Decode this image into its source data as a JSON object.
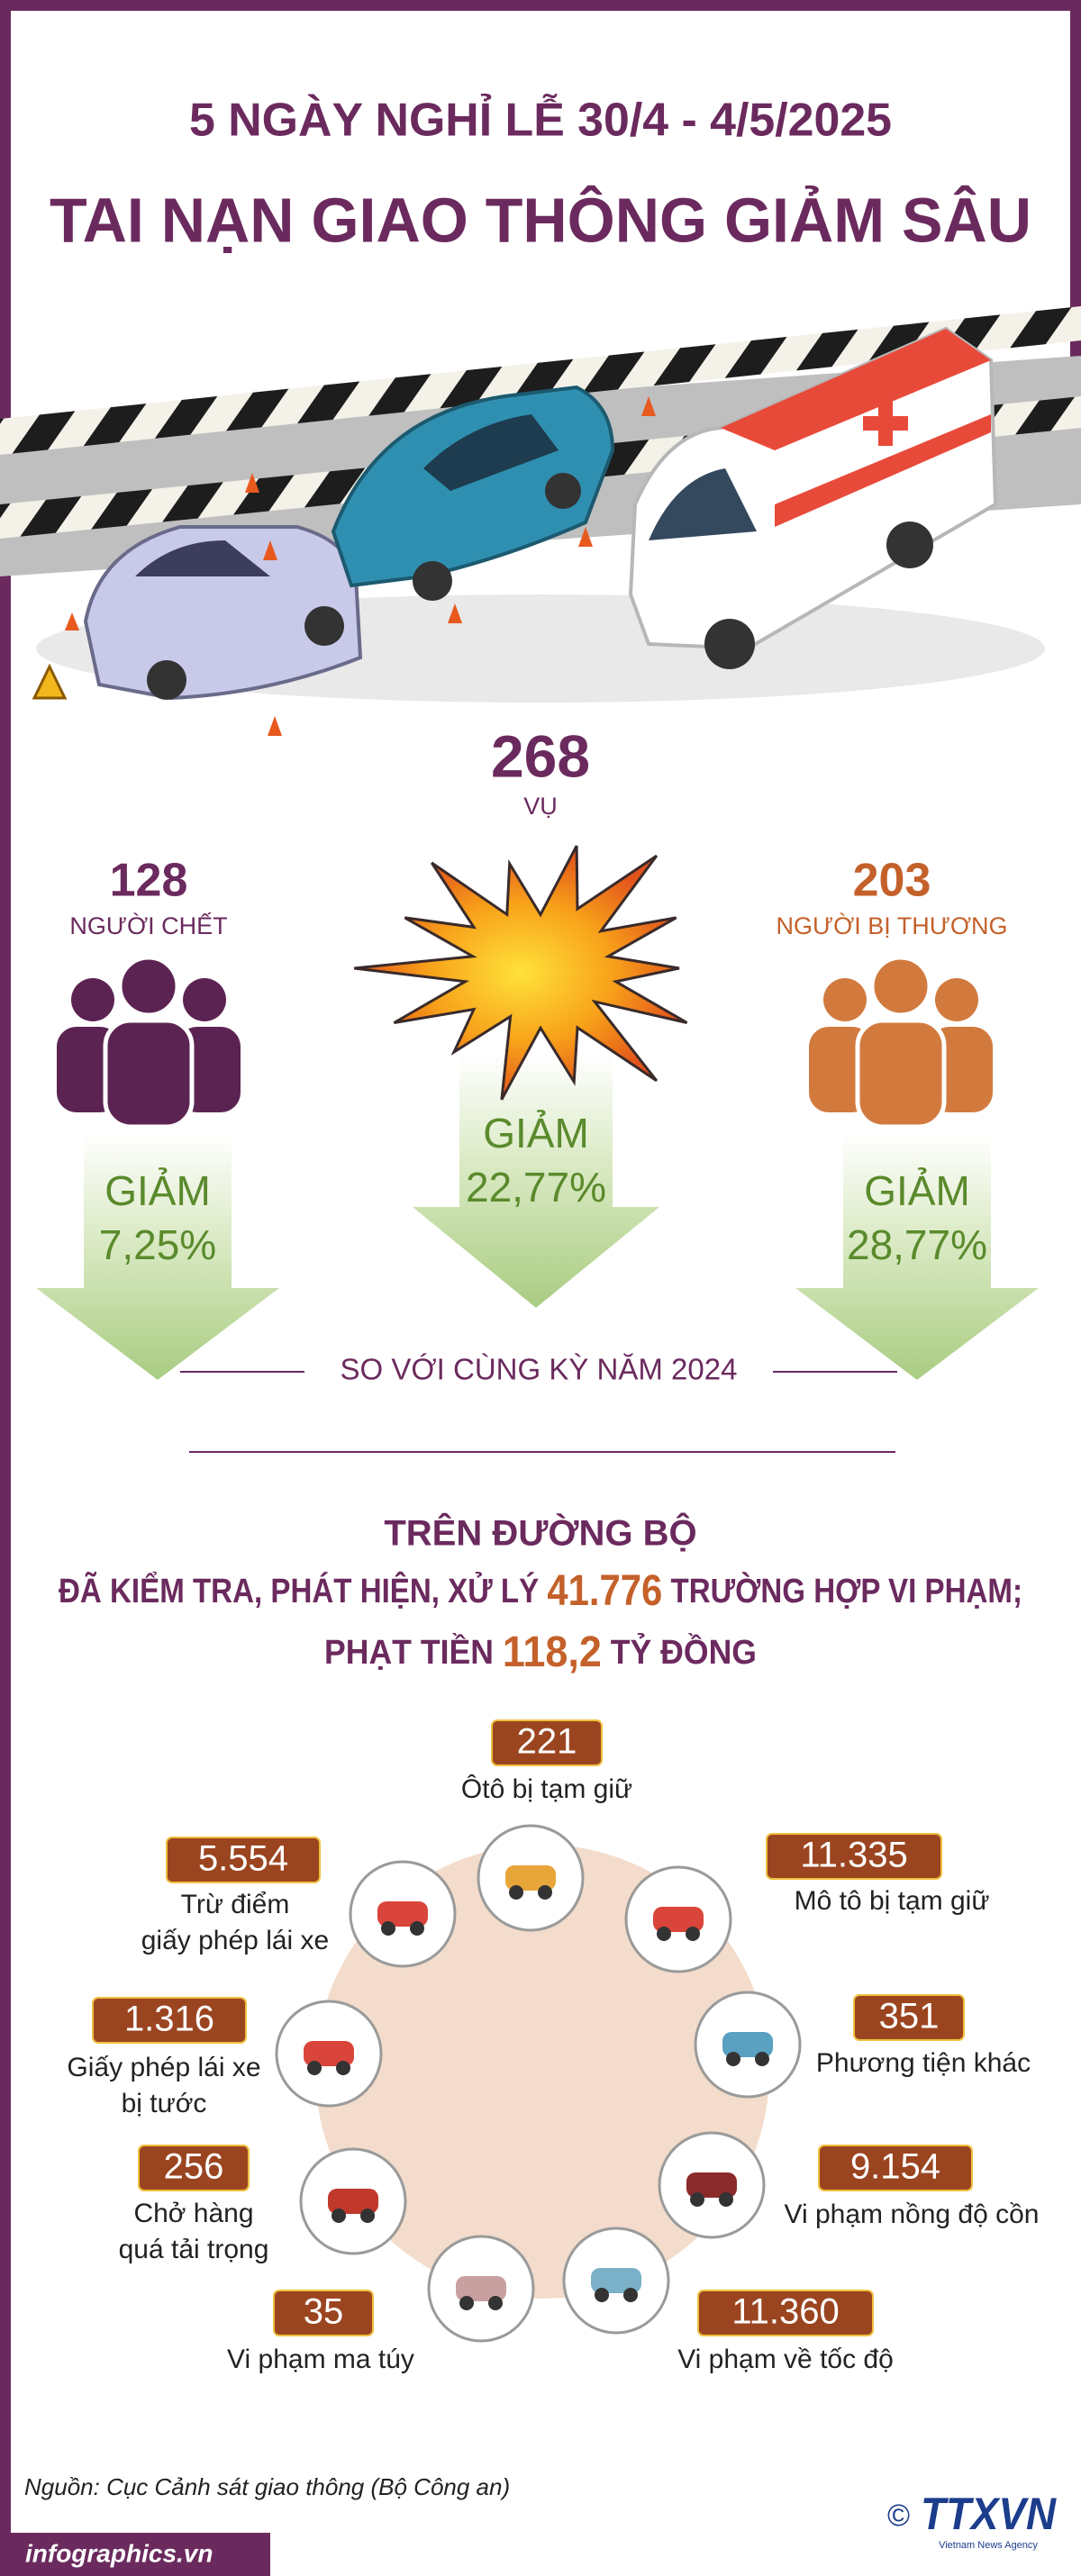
{
  "header": {
    "subtitle": "5 NGÀY NGHỈ LỄ 30/4  - 4/5/2025",
    "title": "TAI NẠN GIAO THÔNG GIẢM SÂU"
  },
  "stats": [
    {
      "value": "128",
      "label": "NGƯỜI CHẾT",
      "change_label": "GIẢM",
      "change": "7,25%"
    },
    {
      "value": "268",
      "label": "VỤ",
      "change_label": "GIẢM",
      "change": "22,77%"
    },
    {
      "value": "203",
      "label": "NGƯỜI BỊ THƯƠNG",
      "change_label": "GIẢM",
      "change": "28,77%"
    }
  ],
  "comparison": "SO VỚI CÙNG KỲ NĂM 2024",
  "road": {
    "heading": "TRÊN ĐƯỜNG BỘ",
    "line1": [
      "ĐÃ KIỂM TRA, PHÁT HIỆN, XỬ LÝ",
      "41.776",
      "TRƯỜNG HỢP VI PHẠM;"
    ],
    "line2": [
      "PHẠT TIỀN",
      "118,2",
      "TỶ ĐỒNG"
    ]
  },
  "items": [
    {
      "value": "221",
      "label": [
        "Ôtô bị tạm giữ"
      ]
    },
    {
      "value": "11.335",
      "label": [
        "Mô tô bị tạm giữ"
      ]
    },
    {
      "value": "351",
      "label": [
        "Phương tiện khác"
      ]
    },
    {
      "value": "9.154",
      "label": [
        "Vi phạm nồng độ cồn"
      ]
    },
    {
      "value": "11.360",
      "label": [
        "Vi phạm về tốc độ"
      ]
    },
    {
      "value": "35",
      "label": [
        "Vi phạm ma túy"
      ]
    },
    {
      "value": "256",
      "label": [
        "Chở hàng",
        "quá tải trọng"
      ]
    },
    {
      "value": "1.316",
      "label": [
        "Giấy phép lái xe",
        "bị tước"
      ]
    },
    {
      "value": "5.554",
      "label": [
        "Trừ điểm",
        "giấy phép lái xe"
      ]
    }
  ],
  "footer": {
    "source": "Nguồn: Cục Cảnh sát giao thông (Bộ Công an)",
    "site": "infographics.vn",
    "copyright": "©",
    "logo": "TTXVN",
    "agency": "Vietnam News Agency"
  }
}
